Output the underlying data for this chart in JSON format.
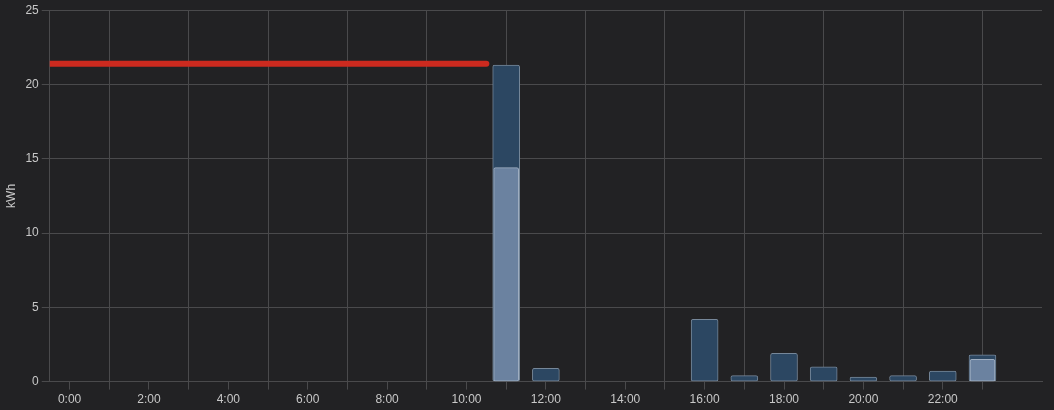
{
  "chart_data": {
    "type": "bar",
    "ylabel": "kWh",
    "xlim": [
      -0.5,
      24.5
    ],
    "ylim": [
      0,
      25
    ],
    "yticks": [
      0,
      5,
      10,
      15,
      20,
      25
    ],
    "xticks": [
      {
        "value": 0,
        "label": "0:00"
      },
      {
        "value": 1,
        "label": null
      },
      {
        "value": 2,
        "label": "2:00"
      },
      {
        "value": 3,
        "label": null
      },
      {
        "value": 4,
        "label": "4:00"
      },
      {
        "value": 5,
        "label": null
      },
      {
        "value": 6,
        "label": "6:00"
      },
      {
        "value": 7,
        "label": null
      },
      {
        "value": 8,
        "label": "8:00"
      },
      {
        "value": 9,
        "label": null
      },
      {
        "value": 10,
        "label": "10:00"
      },
      {
        "value": 11,
        "label": null
      },
      {
        "value": 12,
        "label": "12:00"
      },
      {
        "value": 13,
        "label": null
      },
      {
        "value": 14,
        "label": "14:00"
      },
      {
        "value": 15,
        "label": null
      },
      {
        "value": 16,
        "label": "16:00"
      },
      {
        "value": 17,
        "label": null
      },
      {
        "value": 18,
        "label": "18:00"
      },
      {
        "value": 19,
        "label": null
      },
      {
        "value": 20,
        "label": "20:00"
      },
      {
        "value": 21,
        "label": null
      },
      {
        "value": 22,
        "label": "22:00"
      },
      {
        "value": 23,
        "label": null
      }
    ],
    "grid": true,
    "legend": false,
    "series": [
      {
        "type": "line",
        "color": "#cc2a1f",
        "x": [
          -0.5,
          10.5
        ],
        "values": [
          21.4,
          21.4
        ]
      },
      {
        "color": "#6b82a0",
        "x": [
          11,
          23
        ],
        "values": [
          14.4,
          1.5
        ]
      },
      {
        "color": "#2c4762",
        "x": [
          0,
          1,
          2,
          3,
          4,
          5,
          6,
          7,
          8,
          9,
          10,
          11,
          12,
          13,
          14,
          15,
          16,
          17,
          18,
          19,
          20,
          21,
          22,
          23
        ],
        "values": [
          0,
          0,
          0,
          0,
          0,
          0,
          0,
          0,
          0,
          0,
          0,
          21.3,
          0.9,
          0,
          0,
          0,
          4.2,
          0.4,
          1.9,
          1.0,
          0.3,
          0.4,
          0.7,
          1.8
        ]
      }
    ]
  }
}
